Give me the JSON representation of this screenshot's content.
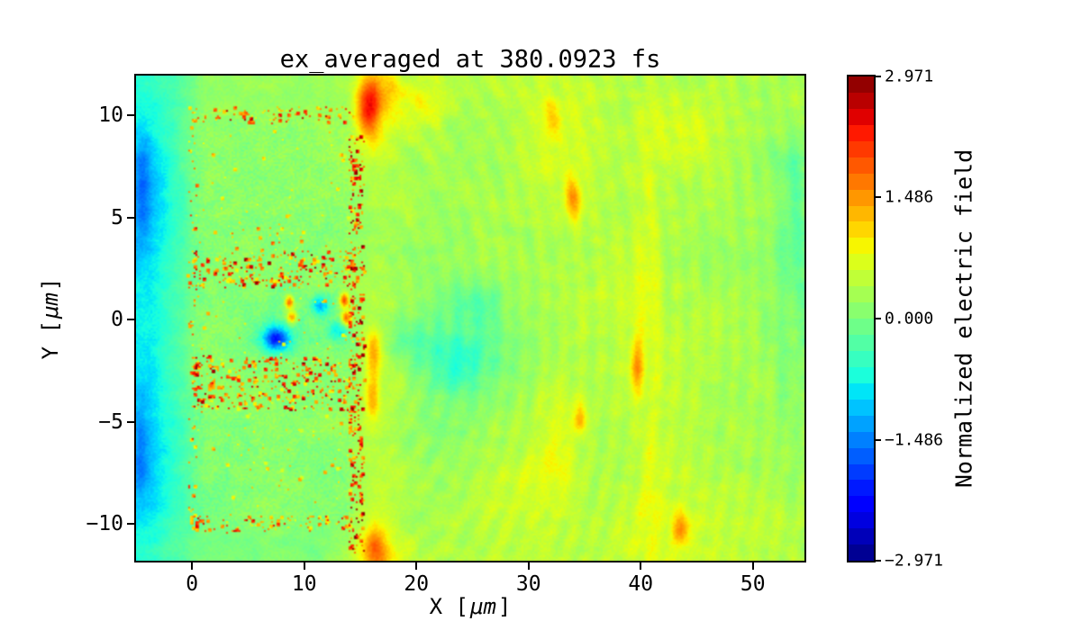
{
  "figure": {
    "background": "#ffffff",
    "spine_color": "#000000"
  },
  "chart_data": {
    "type": "heatmap",
    "title": "ex_averaged at 380.0923 fs",
    "xlabel_parts": [
      "X [",
      "μm",
      "]"
    ],
    "ylabel_parts": [
      "Y [",
      "μm",
      "]"
    ],
    "xlim": [
      -5.0,
      54.6
    ],
    "ylim": [
      -11.8,
      11.95
    ],
    "xticks": {
      "values": [
        0,
        10,
        20,
        30,
        40,
        50
      ],
      "labels": [
        "0",
        "10",
        "20",
        "30",
        "40",
        "50"
      ]
    },
    "yticks": {
      "values": [
        10,
        5,
        0,
        -5,
        -10
      ],
      "labels": [
        "10",
        "5",
        "0",
        "−5",
        "−10"
      ]
    },
    "grid": "off",
    "colorbar": {
      "label": "Normalized electric field",
      "vmin": -2.971,
      "vmax": 2.971,
      "levels": 30,
      "colormap": "jet",
      "tick_values": [
        2.971,
        1.486,
        0,
        -1.486,
        -2.971
      ],
      "tick_labels": [
        "2.971",
        "1.486",
        "0.000",
        "−1.486",
        "−2.971"
      ]
    },
    "field": {
      "comment": "Coarse 24x14 grid of normalized field values read off the map; row 0 = y=+12 (top), col 0 = x=-5 (left). Units: normalized electric field.",
      "x_range": [
        -5,
        55
      ],
      "y_range": [
        12,
        -12
      ],
      "ncols": 24,
      "nrows": 14,
      "base_values": [
        [
          -0.6,
          -0.3,
          0.15,
          0.15,
          0.2,
          0.2,
          0.2,
          0.3,
          1.0,
          0.5,
          0.45,
          0.4,
          0.4,
          0.45,
          0.5,
          0.55,
          0.5,
          0.45,
          0.5,
          0.45,
          0.4,
          0.35,
          0.3,
          0.3
        ],
        [
          -0.8,
          -0.35,
          0.15,
          0.15,
          0.15,
          0.15,
          0.15,
          0.25,
          0.9,
          0.45,
          0.4,
          0.35,
          0.4,
          0.45,
          0.55,
          0.6,
          0.5,
          0.45,
          0.55,
          0.45,
          0.4,
          0.35,
          0.25,
          0.2
        ],
        [
          -1.1,
          -0.4,
          0.2,
          0.15,
          0.15,
          0.15,
          0.15,
          0.2,
          0.45,
          0.4,
          0.35,
          0.3,
          0.35,
          0.4,
          0.5,
          0.6,
          0.5,
          0.4,
          0.5,
          0.45,
          0.4,
          0.3,
          0.2,
          0.1
        ],
        [
          -1.2,
          -0.45,
          0.15,
          0.1,
          0.1,
          0.1,
          0.12,
          0.18,
          0.4,
          0.35,
          0.3,
          0.3,
          0.3,
          0.35,
          0.45,
          0.5,
          0.45,
          0.4,
          0.5,
          0.4,
          0.35,
          0.3,
          0.2,
          0.1
        ],
        [
          -1.1,
          -0.45,
          0.12,
          0.1,
          0.1,
          0.1,
          0.1,
          0.15,
          0.35,
          0.3,
          0.25,
          0.25,
          0.25,
          0.3,
          0.4,
          0.45,
          0.4,
          0.4,
          0.45,
          0.4,
          0.35,
          0.3,
          0.15,
          0.05
        ],
        [
          -0.9,
          -0.4,
          0.1,
          0.1,
          0.1,
          0.1,
          0.1,
          0.15,
          0.3,
          0.25,
          0.2,
          0.2,
          0.2,
          0.3,
          0.4,
          0.4,
          0.4,
          0.4,
          0.45,
          0.4,
          0.3,
          0.25,
          0.15,
          0.05
        ],
        [
          -0.8,
          -0.35,
          0.1,
          0.1,
          0.05,
          0.0,
          0.0,
          0.1,
          0.35,
          0.2,
          0.1,
          0.0,
          0.1,
          0.2,
          0.3,
          0.35,
          0.4,
          0.45,
          0.5,
          0.4,
          0.3,
          0.25,
          0.15,
          0.1
        ],
        [
          -0.8,
          -0.35,
          0.1,
          0.05,
          -0.1,
          -0.2,
          -0.1,
          0.1,
          0.4,
          0.15,
          -0.1,
          -0.15,
          0.0,
          0.15,
          0.3,
          0.35,
          0.4,
          0.5,
          0.5,
          0.4,
          0.35,
          0.3,
          0.2,
          0.15
        ],
        [
          -0.9,
          -0.4,
          0.1,
          0.1,
          0.1,
          0.1,
          0.1,
          0.15,
          0.5,
          0.25,
          0.0,
          -0.1,
          0.0,
          0.15,
          0.3,
          0.4,
          0.45,
          0.55,
          0.5,
          0.4,
          0.35,
          0.3,
          0.25,
          0.2
        ],
        [
          -1.0,
          -0.45,
          0.1,
          0.1,
          0.1,
          0.1,
          0.1,
          0.15,
          0.5,
          0.3,
          0.15,
          0.1,
          0.15,
          0.25,
          0.4,
          0.5,
          0.4,
          0.45,
          0.45,
          0.4,
          0.35,
          0.3,
          0.25,
          0.25
        ],
        [
          -1.1,
          -0.5,
          0.1,
          0.1,
          0.1,
          0.1,
          0.1,
          0.15,
          0.5,
          0.3,
          0.2,
          0.2,
          0.25,
          0.35,
          0.45,
          0.4,
          0.35,
          0.4,
          0.4,
          0.45,
          0.4,
          0.35,
          0.3,
          0.3
        ],
        [
          -1.1,
          -0.5,
          0.05,
          0.08,
          0.1,
          0.1,
          0.1,
          0.15,
          0.55,
          0.35,
          0.25,
          0.3,
          0.35,
          0.45,
          0.5,
          0.4,
          0.35,
          0.4,
          0.4,
          0.5,
          0.45,
          0.4,
          0.35,
          0.3
        ],
        [
          -0.9,
          -0.45,
          0.05,
          0.05,
          0.08,
          0.1,
          0.1,
          0.15,
          0.6,
          0.4,
          0.3,
          0.35,
          0.4,
          0.45,
          0.5,
          0.45,
          0.4,
          0.45,
          0.5,
          0.55,
          0.5,
          0.45,
          0.4,
          0.35
        ],
        [
          -0.6,
          -0.3,
          -0.05,
          0.0,
          0.05,
          0.05,
          0.05,
          0.3,
          0.9,
          0.5,
          0.35,
          0.4,
          0.45,
          0.5,
          0.55,
          0.5,
          0.45,
          0.5,
          0.6,
          0.6,
          0.55,
          0.5,
          0.45,
          0.4
        ]
      ],
      "speckle_bands": [
        {
          "x": [
            0,
            14.5
          ],
          "y": [
            9.6,
            10.4
          ],
          "density": 0.22,
          "v": [
            0.8,
            2.4
          ]
        },
        {
          "x": [
            0,
            14.5
          ],
          "y": [
            1.6,
            3.4
          ],
          "density": 0.25,
          "v": [
            0.8,
            2.6
          ]
        },
        {
          "x": [
            0,
            14.5
          ],
          "y": [
            -4.4,
            -1.8
          ],
          "density": 0.25,
          "v": [
            0.8,
            2.6
          ]
        },
        {
          "x": [
            0,
            14.5
          ],
          "y": [
            -10.4,
            -9.6
          ],
          "density": 0.22,
          "v": [
            0.8,
            2.4
          ]
        },
        {
          "x": [
            -0.35,
            0.35
          ],
          "y": [
            -10.4,
            10.4
          ],
          "density": 0.15,
          "v": [
            0.8,
            2.2
          ]
        },
        {
          "x": [
            14.0,
            15.3
          ],
          "y": [
            -11.5,
            9.0
          ],
          "density": 0.32,
          "v": [
            1.2,
            2.9
          ]
        },
        {
          "x": [
            0,
            14.5
          ],
          "y": [
            -9.6,
            9.6
          ],
          "density": 0.015,
          "v": [
            0.6,
            1.4
          ]
        },
        {
          "x": [
            2,
            10
          ],
          "y": [
            2.8,
            4.8
          ],
          "density": 0.05,
          "v": [
            0.7,
            1.8
          ]
        },
        {
          "x": [
            10.5,
            14.5
          ],
          "y": [
            -7.5,
            -4.5
          ],
          "density": 0.03,
          "v": [
            0.7,
            1.6
          ]
        }
      ],
      "blobs": [
        {
          "x": 15.6,
          "y": 10.4,
          "rx": 1.0,
          "ry": 1.4,
          "v": 1.5
        },
        {
          "x": 16.1,
          "y": -1.6,
          "rx": 0.7,
          "ry": 1.1,
          "v": 1.1
        },
        {
          "x": 16.0,
          "y": -3.9,
          "rx": 0.6,
          "ry": 0.9,
          "v": 0.9
        },
        {
          "x": 16.3,
          "y": -11.2,
          "rx": 1.1,
          "ry": 1.0,
          "v": 1.0
        },
        {
          "x": 7.4,
          "y": -0.9,
          "rx": 1.2,
          "ry": 0.6,
          "v": -1.9
        },
        {
          "x": 11.4,
          "y": 0.7,
          "rx": 0.9,
          "ry": 0.5,
          "v": -1.2
        },
        {
          "x": 12.9,
          "y": -0.5,
          "rx": 0.9,
          "ry": 0.5,
          "v": -0.9
        },
        {
          "x": 8.6,
          "y": 0.9,
          "rx": 0.35,
          "ry": 0.3,
          "v": 1.7
        },
        {
          "x": 13.5,
          "y": 1.0,
          "rx": 0.4,
          "ry": 0.35,
          "v": 1.8
        },
        {
          "x": 8.8,
          "y": 0.15,
          "rx": 0.45,
          "ry": 0.3,
          "v": 1.5
        },
        {
          "x": 13.7,
          "y": 0.1,
          "rx": 0.45,
          "ry": 0.35,
          "v": 1.7
        },
        {
          "x": -4.5,
          "y": 6.5,
          "rx": 0.6,
          "ry": 2.6,
          "v": -0.5
        },
        {
          "x": -4.7,
          "y": -6.5,
          "rx": 0.55,
          "ry": 2.6,
          "v": -0.45
        },
        {
          "x": 33.9,
          "y": 5.9,
          "rx": 0.8,
          "ry": 1.1,
          "v": 1.0
        },
        {
          "x": 31.9,
          "y": 9.9,
          "rx": 0.8,
          "ry": 1.1,
          "v": 0.55
        },
        {
          "x": 39.6,
          "y": -2.2,
          "rx": 0.55,
          "ry": 1.3,
          "v": 0.9
        },
        {
          "x": 34.6,
          "y": -4.8,
          "rx": 0.6,
          "ry": 0.7,
          "v": 0.8
        },
        {
          "x": 43.6,
          "y": -10.2,
          "rx": 0.8,
          "ry": 0.8,
          "v": 0.8
        },
        {
          "x": 40.5,
          "y": 3.0,
          "rx": 1.1,
          "ry": 6.0,
          "v": 0.3
        },
        {
          "x": 40.9,
          "y": -8.0,
          "rx": 1.0,
          "ry": 3.0,
          "v": 0.35
        },
        {
          "x": 23.5,
          "y": -2.0,
          "rx": 2.6,
          "ry": 1.4,
          "v": -0.45
        },
        {
          "x": 25.5,
          "y": 0.9,
          "rx": 1.9,
          "ry": 1.0,
          "v": -0.35
        },
        {
          "x": 19.0,
          "y": -1.2,
          "rx": 1.6,
          "ry": 1.0,
          "v": -0.3
        },
        {
          "x": 44.5,
          "y": 9.0,
          "rx": 2.2,
          "ry": 1.6,
          "v": 0.25
        },
        {
          "x": 32.5,
          "y": -6.5,
          "rx": 1.6,
          "ry": 2.6,
          "v": 0.4
        },
        {
          "x": 28.0,
          "y": -8.5,
          "rx": 2.6,
          "ry": 1.8,
          "v": 0.2
        },
        {
          "x": 53.5,
          "y": 5.0,
          "rx": 1.2,
          "ry": 3.2,
          "v": -0.35
        },
        {
          "x": 53.0,
          "y": -3.5,
          "rx": 1.0,
          "ry": 2.4,
          "v": -0.25
        },
        {
          "x": 17.5,
          "y": 11.0,
          "rx": 1.4,
          "ry": 0.9,
          "v": 0.5
        },
        {
          "x": 21.0,
          "y": 10.5,
          "rx": 2.0,
          "ry": 1.0,
          "v": 0.35
        }
      ],
      "texture": {
        "noise_amplitude": 0.13,
        "broad_amplitude": 0.1,
        "fine_noise_amplitude": 0.09,
        "box_region": {
          "x": [
            0,
            14.5
          ],
          "y": [
            -10.3,
            10.3
          ],
          "fine_noise_amplitude": 0.16
        },
        "striations": {
          "center": [
            14,
            0
          ],
          "wavelength": 1.7,
          "amplitude": 0.12,
          "start_x": 15.5,
          "ramp": 4
        }
      }
    }
  },
  "layout_text": {
    "note": "all visible strings live in chart_data"
  }
}
